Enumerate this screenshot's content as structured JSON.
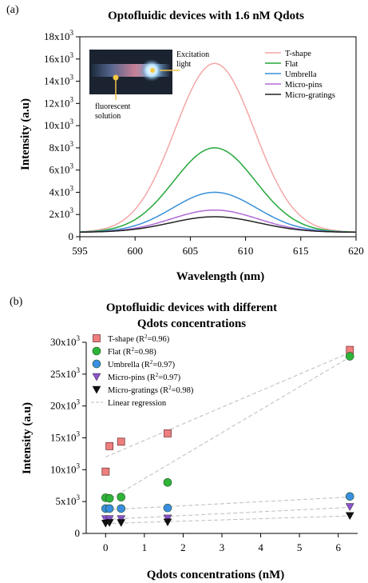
{
  "panel_a": {
    "label": "(a)",
    "inset": {
      "excitation_label_line1": "Excitation",
      "excitation_label_line2": "light",
      "fluorescent_label_line1": "fluorescent",
      "fluorescent_label_line2": "solution"
    }
  },
  "panel_b": {
    "label": "(b)"
  },
  "chart_data": [
    {
      "type": "line",
      "title": "Optofluidic devices with 1.6 nM Qdots",
      "xlabel": "Wavelength (nm)",
      "ylabel": "Intensity (a.u)",
      "xlim": [
        595,
        620
      ],
      "ylim": [
        0,
        18000
      ],
      "x_ticks": [
        "595",
        "600",
        "605",
        "610",
        "615",
        "620"
      ],
      "y_ticks": [
        {
          "v": 0,
          "m": "0",
          "e": ""
        },
        {
          "v": 2000,
          "m": "2x10",
          "e": "3"
        },
        {
          "v": 4000,
          "m": "4x10",
          "e": "3"
        },
        {
          "v": 6000,
          "m": "6x10",
          "e": "3"
        },
        {
          "v": 8000,
          "m": "8x10",
          "e": "3"
        },
        {
          "v": 10000,
          "m": "10x10",
          "e": "3"
        },
        {
          "v": 12000,
          "m": "12x10",
          "e": "3"
        },
        {
          "v": 14000,
          "m": "14x10",
          "e": "3"
        },
        {
          "v": 16000,
          "m": "16x10",
          "e": "3"
        },
        {
          "v": 18000,
          "m": "18x10",
          "e": "3"
        }
      ],
      "legend_position": "top-right",
      "series": [
        {
          "name": "T-shape",
          "color": "#f4a6a6",
          "peak_x": 607.2,
          "peak_y": 15600,
          "sigma": 3.6,
          "baseline": 400
        },
        {
          "name": "Flat",
          "color": "#22a83a",
          "peak_x": 607.2,
          "peak_y": 8000,
          "sigma": 3.7,
          "baseline": 400
        },
        {
          "name": "Umbrella",
          "color": "#3a8fd8",
          "peak_x": 607.2,
          "peak_y": 4000,
          "sigma": 3.8,
          "baseline": 400
        },
        {
          "name": "Micro-pins",
          "color": "#b06ad6",
          "peak_x": 607.2,
          "peak_y": 2400,
          "sigma": 3.9,
          "baseline": 400
        },
        {
          "name": "Micro-gratings",
          "color": "#222222",
          "peak_x": 607.2,
          "peak_y": 1800,
          "sigma": 4.0,
          "baseline": 400
        }
      ]
    },
    {
      "type": "scatter",
      "title_line1": "Optofluidic devices with different",
      "title_line2": "Qdots concentrations",
      "xlabel": "Qdots concentrations (nM)",
      "ylabel": "Intensity (a.u)",
      "xlim": [
        -0.5,
        6.5
      ],
      "ylim": [
        0,
        30000
      ],
      "x_ticks": [
        "0",
        "1",
        "2",
        "3",
        "4",
        "5",
        "6"
      ],
      "y_ticks": [
        {
          "v": 0,
          "m": "0",
          "e": ""
        },
        {
          "v": 5000,
          "m": "5x10",
          "e": "3"
        },
        {
          "v": 10000,
          "m": "10x10",
          "e": "3"
        },
        {
          "v": 15000,
          "m": "15x10",
          "e": "3"
        },
        {
          "v": 20000,
          "m": "20x10",
          "e": "3"
        },
        {
          "v": 25000,
          "m": "25x10",
          "e": "3"
        },
        {
          "v": 30000,
          "m": "30x10",
          "e": "3"
        }
      ],
      "legend_position": "top-left",
      "series": [
        {
          "name": "T-shape",
          "r2_label": "(R",
          "r2_value": "=0.96)",
          "marker": "square",
          "color": "#ee7f7f",
          "x": [
            0,
            0.1,
            0.4,
            1.6,
            6.3
          ],
          "y": [
            9700,
            13700,
            14400,
            15700,
            28800
          ],
          "fit": [
            12000,
            2600
          ]
        },
        {
          "name": "Flat",
          "r2_label": "(R",
          "r2_value": "=0.98)",
          "marker": "circle",
          "color": "#2fb43a",
          "x": [
            0,
            0.1,
            0.4,
            1.6,
            6.3
          ],
          "y": [
            5600,
            5500,
            5700,
            8000,
            27800
          ],
          "fit": [
            5000,
            3600
          ]
        },
        {
          "name": "Umbrella",
          "r2_label": "(R",
          "r2_value": "=0.97)",
          "marker": "circle",
          "color": "#3a8fe0",
          "x": [
            0,
            0.1,
            0.4,
            1.6,
            6.3
          ],
          "y": [
            3900,
            3900,
            3900,
            4000,
            5800
          ],
          "fit": [
            3700,
            320
          ]
        },
        {
          "name": "Micro-pins",
          "r2_label": "(R",
          "r2_value": "=0.97)",
          "marker": "triangle-down",
          "color": "#8a55c9",
          "x": [
            0,
            0.1,
            0.4,
            1.6,
            6.3
          ],
          "y": [
            2300,
            2300,
            2300,
            2400,
            4200
          ],
          "fit": [
            2200,
            300
          ]
        },
        {
          "name": "Micro-gratings",
          "r2_label": "(R",
          "r2_value": "=0.98)",
          "marker": "triangle-down",
          "color": "#111111",
          "x": [
            0,
            0.1,
            0.4,
            1.6,
            6.3
          ],
          "y": [
            1600,
            1700,
            1700,
            1800,
            2800
          ],
          "fit": [
            1550,
            190
          ]
        },
        {
          "name": "Linear regression",
          "marker": "line",
          "color": "#bdbdbd"
        }
      ]
    }
  ]
}
